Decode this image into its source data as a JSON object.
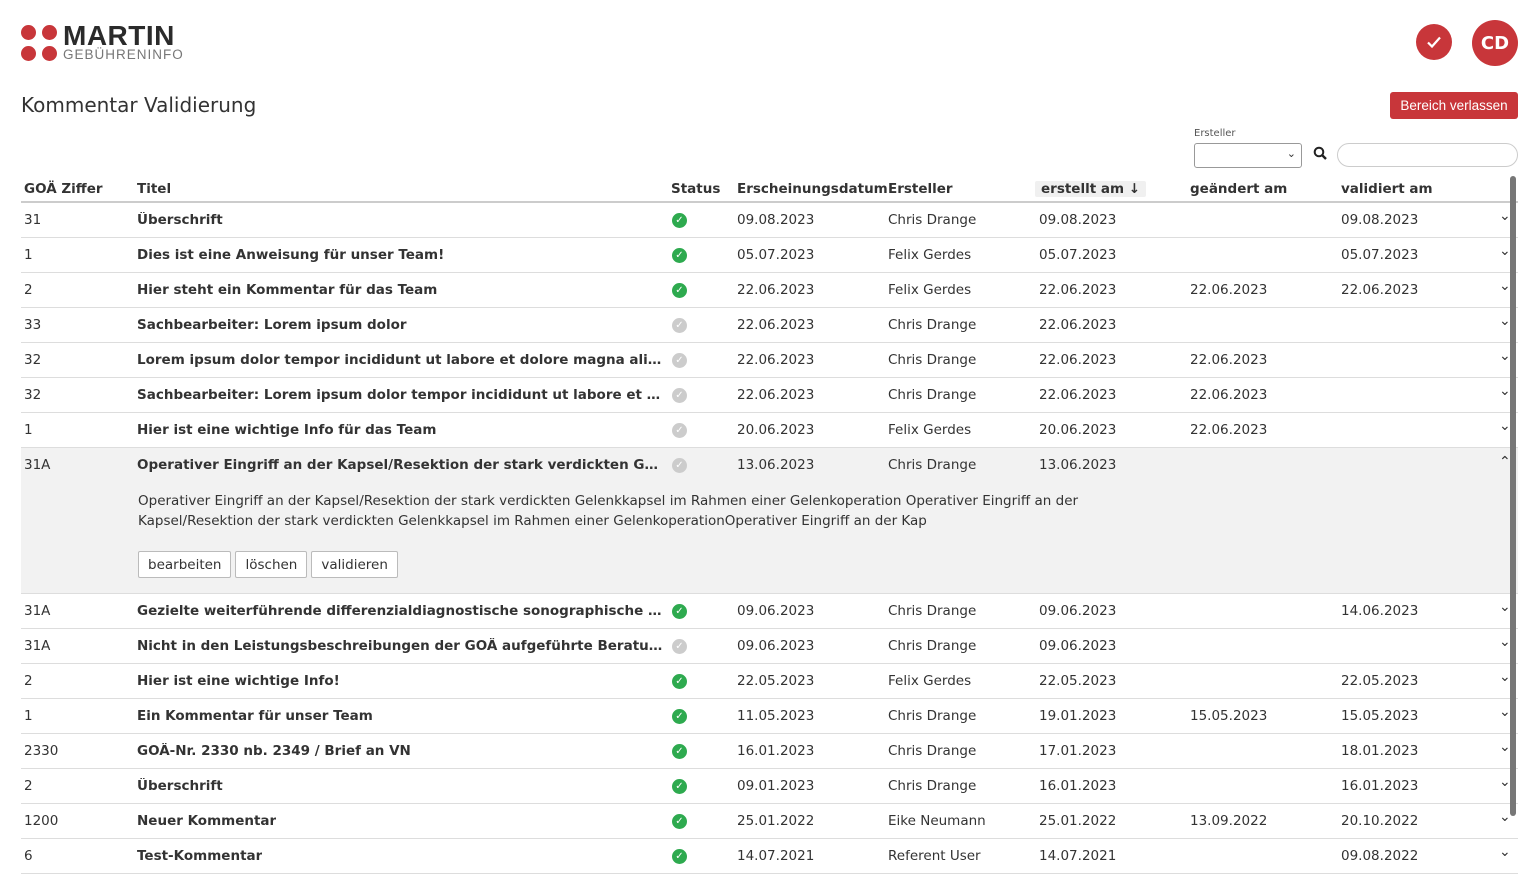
{
  "brand": {
    "name": "MARTIN",
    "sub": "GEBÜHRENINFO"
  },
  "header": {
    "avatar": "CD",
    "exit_label": "Bereich verlassen"
  },
  "page_title": "Kommentar Validierung",
  "filter": {
    "label": "Ersteller",
    "value": "",
    "search_value": ""
  },
  "colors": {
    "accent": "#c8363a",
    "valid": "#2eaa4f",
    "pending": "#cccccc"
  },
  "columns": [
    "GOÄ Ziffer",
    "Titel",
    "Status",
    "Erscheinungsdatum",
    "Ersteller",
    "erstellt am",
    "geändert am",
    "validiert am"
  ],
  "sort": {
    "column": "erstellt am",
    "direction": "desc"
  },
  "rows": [
    {
      "goa": "31",
      "title": "Überschrift",
      "status": "valid",
      "pub": "09.08.2023",
      "author": "Chris Drange",
      "created": "09.08.2023",
      "changed": "",
      "validated": "09.08.2023"
    },
    {
      "goa": "1",
      "title": "Dies ist eine Anweisung für unser Team!",
      "status": "valid",
      "pub": "05.07.2023",
      "author": "Felix Gerdes",
      "created": "05.07.2023",
      "changed": "",
      "validated": "05.07.2023"
    },
    {
      "goa": "2",
      "title": "Hier steht ein Kommentar für das Team",
      "status": "valid",
      "pub": "22.06.2023",
      "author": "Felix Gerdes",
      "created": "22.06.2023",
      "changed": "22.06.2023",
      "validated": "22.06.2023"
    },
    {
      "goa": "33",
      "title": "Sachbearbeiter: Lorem ipsum dolor",
      "status": "pending",
      "pub": "22.06.2023",
      "author": "Chris Drange",
      "created": "22.06.2023",
      "changed": "",
      "validated": ""
    },
    {
      "goa": "32",
      "title": "Lorem ipsum dolor tempor incididunt ut labore et dolore magna aliqua",
      "status": "pending",
      "pub": "22.06.2023",
      "author": "Chris Drange",
      "created": "22.06.2023",
      "changed": "22.06.2023",
      "validated": ""
    },
    {
      "goa": "32",
      "title": "Sachbearbeiter: Lorem ipsum dolor tempor incididunt ut labore et dolore magna al...",
      "status": "pending",
      "pub": "22.06.2023",
      "author": "Chris Drange",
      "created": "22.06.2023",
      "changed": "22.06.2023",
      "validated": ""
    },
    {
      "goa": "1",
      "title": "Hier ist eine wichtige Info für das Team",
      "status": "pending",
      "pub": "20.06.2023",
      "author": "Felix Gerdes",
      "created": "20.06.2023",
      "changed": "22.06.2023",
      "validated": ""
    },
    {
      "goa": "31A",
      "title": "Operativer Eingriff an der Kapsel/Resektion der stark verdickten Gelenkkapsel im...",
      "status": "pending",
      "pub": "13.06.2023",
      "author": "Chris Drange",
      "created": "13.06.2023",
      "changed": "",
      "validated": "",
      "expanded": true,
      "body": "Operativer Eingriff an der Kapsel/Resektion der stark verdickten Gelenkkapsel im Rahmen einer Gelenkoperation Operativer Eingriff an der Kapsel/Resektion der stark verdickten Gelenkkapsel im Rahmen einer GelenkoperationOperativer Eingriff an der Kap",
      "actions": [
        "bearbeiten",
        "löschen",
        "validieren"
      ]
    },
    {
      "goa": "31A",
      "title": "Gezielte weiterführende differenzialdiagnostische sonographische Abklärung bei ...",
      "status": "valid",
      "pub": "09.06.2023",
      "author": "Chris Drange",
      "created": "09.06.2023",
      "changed": "",
      "validated": "14.06.2023"
    },
    {
      "goa": "31A",
      "title": "Nicht in den Leistungsbeschreibungen der GOÄ aufgeführte Beratungen / Anamne...",
      "status": "pending",
      "pub": "09.06.2023",
      "author": "Chris Drange",
      "created": "09.06.2023",
      "changed": "",
      "validated": ""
    },
    {
      "goa": "2",
      "title": "Hier ist eine wichtige Info!",
      "status": "valid",
      "pub": "22.05.2023",
      "author": "Felix Gerdes",
      "created": "22.05.2023",
      "changed": "",
      "validated": "22.05.2023"
    },
    {
      "goa": "1",
      "title": "Ein Kommentar für unser Team",
      "status": "valid",
      "pub": "11.05.2023",
      "author": "Chris Drange",
      "created": "19.01.2023",
      "changed": "15.05.2023",
      "validated": "15.05.2023"
    },
    {
      "goa": "2330",
      "title": "GOÄ-Nr. 2330 nb. 2349 / Brief an VN",
      "status": "valid",
      "pub": "16.01.2023",
      "author": "Chris Drange",
      "created": "17.01.2023",
      "changed": "",
      "validated": "18.01.2023"
    },
    {
      "goa": "2",
      "title": "Überschrift",
      "status": "valid",
      "pub": "09.01.2023",
      "author": "Chris Drange",
      "created": "16.01.2023",
      "changed": "",
      "validated": "16.01.2023"
    },
    {
      "goa": "1200",
      "title": "Neuer Kommentar",
      "status": "valid",
      "pub": "25.01.2022",
      "author": "Eike Neumann",
      "created": "25.01.2022",
      "changed": "13.09.2022",
      "validated": "20.10.2022"
    },
    {
      "goa": "6",
      "title": "Test-Kommentar",
      "status": "valid",
      "pub": "14.07.2021",
      "author": "Referent User",
      "created": "14.07.2021",
      "changed": "",
      "validated": "09.08.2022"
    }
  ]
}
